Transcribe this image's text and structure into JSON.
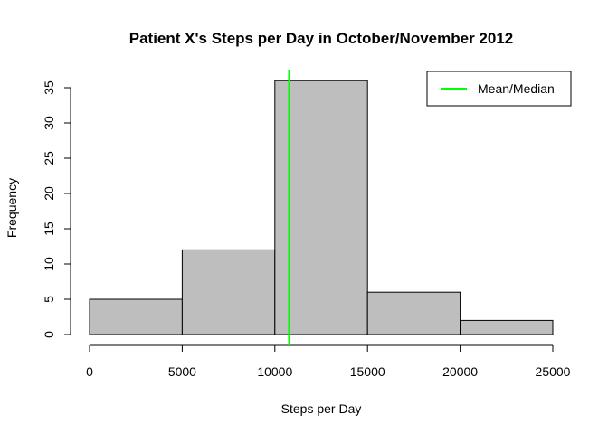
{
  "chart_data": {
    "type": "bar",
    "subtype": "histogram",
    "title": "Patient X's Steps per Day in October/November 2012",
    "xlabel": "Steps per Day",
    "ylabel": "Frequency",
    "bins": [
      {
        "from": 0,
        "to": 5000,
        "count": 5
      },
      {
        "from": 5000,
        "to": 10000,
        "count": 12
      },
      {
        "from": 10000,
        "to": 15000,
        "count": 36
      },
      {
        "from": 15000,
        "to": 20000,
        "count": 6
      },
      {
        "from": 20000,
        "to": 25000,
        "count": 2
      }
    ],
    "xlim": [
      0,
      25000
    ],
    "ylim": [
      0,
      35
    ],
    "x_ticks": [
      "0",
      "5000",
      "10000",
      "15000",
      "20000",
      "25000"
    ],
    "y_ticks": [
      "0",
      "5",
      "10",
      "15",
      "20",
      "25",
      "30",
      "35"
    ],
    "bar_color": "#bebebe",
    "mean_median_line": {
      "value": 10766,
      "color": "#00ff00",
      "label": "Mean/Median"
    },
    "legend": {
      "position": "top-right",
      "entries": [
        "Mean/Median"
      ]
    },
    "grid": false
  }
}
